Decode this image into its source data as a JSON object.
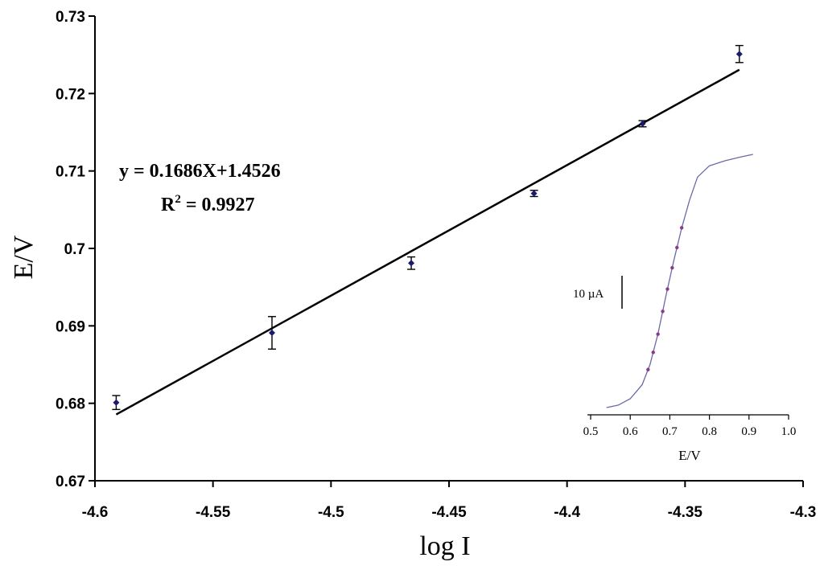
{
  "chart_data": [
    {
      "type": "scatter",
      "xlabel": "log I",
      "ylabel": "E/V",
      "xlim": [
        -4.6,
        -4.3
      ],
      "ylim": [
        0.67,
        0.73
      ],
      "x_ticks": [
        "-4.6",
        "-4.55",
        "-4.5",
        "-4.45",
        "-4.4",
        "-4.35",
        "-4.3"
      ],
      "y_ticks": [
        "0.67",
        "0.68",
        "0.69",
        "0.7",
        "0.71",
        "0.72",
        "0.73"
      ],
      "grid": false,
      "series": [
        {
          "points": [
            {
              "x": -4.591,
              "y": 0.6801,
              "err": 0.0009
            },
            {
              "x": -4.525,
              "y": 0.6891,
              "err": 0.0021
            },
            {
              "x": -4.466,
              "y": 0.6981,
              "err": 0.0008
            },
            {
              "x": -4.414,
              "y": 0.7071,
              "err": 0.0004
            },
            {
              "x": -4.368,
              "y": 0.7161,
              "err": 0.0004
            },
            {
              "x": -4.327,
              "y": 0.7251,
              "err": 0.0011
            }
          ],
          "color": "#1a1a6e"
        }
      ],
      "fit": {
        "slope": 0.1686,
        "intercept": 1.4526,
        "x_range": [
          -4.591,
          -4.327
        ],
        "equation_text": "y = 0.1686X+1.4526",
        "r2_prefix": "R",
        "r2_sup": "2",
        "r2_value": " = 0.9927"
      }
    },
    {
      "type": "line",
      "inset": true,
      "xlabel": "E/V",
      "xlim": [
        0.5,
        1.0
      ],
      "x_ticks": [
        "0.5",
        "0.6",
        "0.7",
        "0.8",
        "0.9",
        "1.0"
      ],
      "scale_bar_label": "10 µA",
      "curve_color": "#6a6aa8",
      "marker_color": "#8a3a8a",
      "curve": [
        {
          "x": 0.54,
          "y": 0.0
        },
        {
          "x": 0.57,
          "y": 0.01
        },
        {
          "x": 0.6,
          "y": 0.035
        },
        {
          "x": 0.63,
          "y": 0.09
        },
        {
          "x": 0.65,
          "y": 0.17
        },
        {
          "x": 0.67,
          "y": 0.29
        },
        {
          "x": 0.69,
          "y": 0.44
        },
        {
          "x": 0.71,
          "y": 0.58
        },
        {
          "x": 0.73,
          "y": 0.71
        },
        {
          "x": 0.75,
          "y": 0.82
        },
        {
          "x": 0.77,
          "y": 0.91
        },
        {
          "x": 0.8,
          "y": 0.955
        },
        {
          "x": 0.84,
          "y": 0.975
        },
        {
          "x": 0.88,
          "y": 0.99
        },
        {
          "x": 0.91,
          "y": 1.0
        }
      ],
      "markers_x": [
        0.645,
        0.658,
        0.67,
        0.682,
        0.694,
        0.706,
        0.718,
        0.73
      ]
    }
  ]
}
